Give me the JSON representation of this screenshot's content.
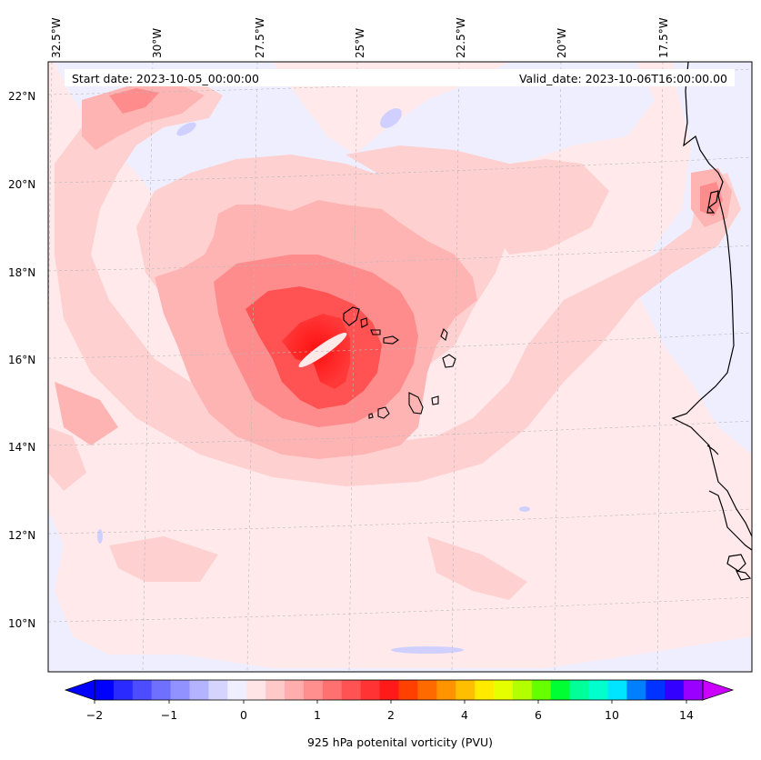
{
  "map": {
    "title_start": "Start date: 2023-10-05_00:00:00",
    "title_valid": "Valid_date: 2023-10-06T16:00:00.00",
    "longitude_labels": [
      "32.5°W",
      "30°W",
      "27.5°W",
      "25°W",
      "22.5°W",
      "20°W",
      "17.5°W"
    ],
    "latitude_labels": [
      "22°N",
      "20°N",
      "18°N",
      "16°N",
      "14°N",
      "12°N",
      "10°N"
    ],
    "variable": "925 hPa potential vorticity",
    "lon_range": [
      -33.5,
      -15.0
    ],
    "lat_range": [
      8.8,
      22.8
    ]
  },
  "colorbar": {
    "label": "925 hPa potenital vorticity (PVU)",
    "tick_labels": [
      "−2",
      "−1",
      "0",
      "1",
      "2",
      "4",
      "6",
      "10",
      "14"
    ],
    "colors": [
      "#0000ff",
      "#2a2aff",
      "#4d4dff",
      "#7070ff",
      "#9191ff",
      "#b3b3ff",
      "#d4d4ff",
      "#efefff",
      "#ffe5e5",
      "#ffc9c9",
      "#ffadad",
      "#ff8e8e",
      "#ff7070",
      "#ff5353",
      "#ff3333",
      "#ff1a1a",
      "#ff4000",
      "#ff6a00",
      "#ff9400",
      "#ffbf00",
      "#ffea00",
      "#e6ff00",
      "#b3ff00",
      "#66ff00",
      "#00ff33",
      "#00ff99",
      "#00ffcc",
      "#00e5ff",
      "#0080ff",
      "#0033ff",
      "#3300ff",
      "#9900ff"
    ],
    "extend_min_color": "#0000ff",
    "extend_max_color": "#cc00ff"
  }
}
